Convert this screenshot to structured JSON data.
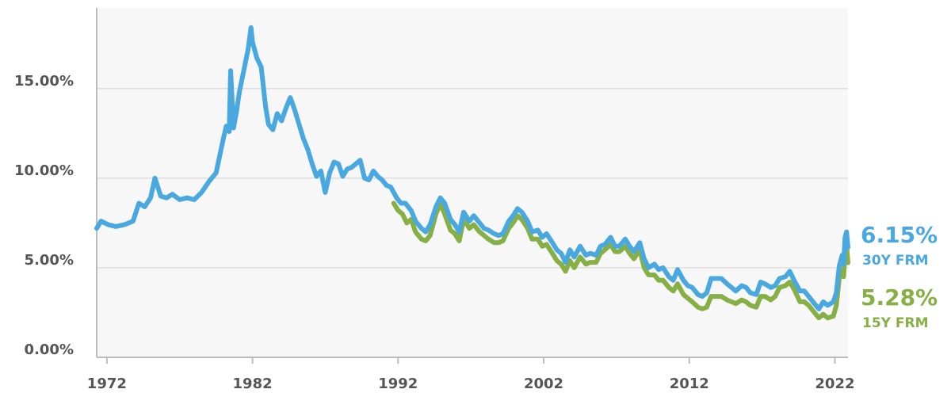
{
  "chart_data": {
    "type": "line",
    "xlim": [
      1971.3,
      2022.9
    ],
    "ylim": [
      0,
      19.5
    ],
    "y_ticks": [
      {
        "value": 0,
        "label": "0.00%"
      },
      {
        "value": 5,
        "label": "5.00%"
      },
      {
        "value": 10,
        "label": "10.00%"
      },
      {
        "value": 15,
        "label": "15.00%"
      }
    ],
    "x_ticks": [
      {
        "value": 1972,
        "label": "1972"
      },
      {
        "value": 1982,
        "label": "1982"
      },
      {
        "value": 1992,
        "label": "1992"
      },
      {
        "value": 2002,
        "label": "2002"
      },
      {
        "value": 2012,
        "label": "2012"
      },
      {
        "value": 2022,
        "label": "2022"
      }
    ],
    "grid": "horizontal",
    "colors": {
      "plot_bg": "#f7f7f7",
      "grid": "#dddddd",
      "axis": "#bbbbbb"
    },
    "series": [
      {
        "name": "30Y FRM",
        "color": "#4aa8e0",
        "end_value_label": "6.15%",
        "end_name_label": "30Y FRM",
        "points": [
          [
            1971.3,
            7.2
          ],
          [
            1971.6,
            7.6
          ],
          [
            1972.1,
            7.4
          ],
          [
            1972.6,
            7.3
          ],
          [
            1973.2,
            7.4
          ],
          [
            1973.8,
            7.6
          ],
          [
            1974.2,
            8.6
          ],
          [
            1974.6,
            8.4
          ],
          [
            1975.0,
            8.9
          ],
          [
            1975.3,
            10.0
          ],
          [
            1975.7,
            9.0
          ],
          [
            1976.1,
            8.9
          ],
          [
            1976.5,
            9.1
          ],
          [
            1977.0,
            8.8
          ],
          [
            1977.5,
            8.9
          ],
          [
            1978.0,
            8.8
          ],
          [
            1978.5,
            9.2
          ],
          [
            1979.0,
            9.8
          ],
          [
            1979.5,
            10.3
          ],
          [
            1980.0,
            12.2
          ],
          [
            1980.2,
            12.9
          ],
          [
            1980.4,
            12.6
          ],
          [
            1980.5,
            16.0
          ],
          [
            1980.7,
            12.8
          ],
          [
            1980.9,
            13.7
          ],
          [
            1981.1,
            14.8
          ],
          [
            1981.4,
            16.0
          ],
          [
            1981.7,
            17.2
          ],
          [
            1981.9,
            18.4
          ],
          [
            1982.0,
            17.6
          ],
          [
            1982.3,
            16.7
          ],
          [
            1982.6,
            16.2
          ],
          [
            1982.9,
            14.0
          ],
          [
            1983.1,
            13.0
          ],
          [
            1983.4,
            12.7
          ],
          [
            1983.7,
            13.6
          ],
          [
            1984.0,
            13.2
          ],
          [
            1984.3,
            13.9
          ],
          [
            1984.6,
            14.5
          ],
          [
            1984.9,
            13.8
          ],
          [
            1985.2,
            13.0
          ],
          [
            1985.5,
            12.2
          ],
          [
            1985.8,
            11.6
          ],
          [
            1986.1,
            10.8
          ],
          [
            1986.4,
            10.1
          ],
          [
            1986.7,
            10.4
          ],
          [
            1987.0,
            9.2
          ],
          [
            1987.3,
            10.3
          ],
          [
            1987.6,
            10.9
          ],
          [
            1987.9,
            10.8
          ],
          [
            1988.2,
            10.1
          ],
          [
            1988.5,
            10.5
          ],
          [
            1988.8,
            10.6
          ],
          [
            1989.1,
            10.8
          ],
          [
            1989.4,
            11.0
          ],
          [
            1989.7,
            10.0
          ],
          [
            1990.0,
            9.9
          ],
          [
            1990.3,
            10.4
          ],
          [
            1990.6,
            10.1
          ],
          [
            1990.9,
            9.9
          ],
          [
            1991.2,
            9.6
          ],
          [
            1991.5,
            9.5
          ],
          [
            1991.9,
            8.9
          ],
          [
            1992.2,
            8.6
          ],
          [
            1992.5,
            8.6
          ],
          [
            1992.9,
            8.2
          ],
          [
            1993.2,
            7.6
          ],
          [
            1993.6,
            7.2
          ],
          [
            1993.9,
            7.0
          ],
          [
            1994.2,
            7.4
          ],
          [
            1994.6,
            8.4
          ],
          [
            1994.9,
            8.9
          ],
          [
            1995.2,
            8.6
          ],
          [
            1995.6,
            7.7
          ],
          [
            1995.9,
            7.4
          ],
          [
            1996.2,
            7.0
          ],
          [
            1996.5,
            8.1
          ],
          [
            1996.9,
            7.6
          ],
          [
            1997.2,
            7.9
          ],
          [
            1997.6,
            7.5
          ],
          [
            1997.9,
            7.2
          ],
          [
            1998.2,
            7.1
          ],
          [
            1998.6,
            6.9
          ],
          [
            1998.9,
            6.8
          ],
          [
            1999.2,
            6.9
          ],
          [
            1999.6,
            7.6
          ],
          [
            1999.9,
            7.9
          ],
          [
            2000.2,
            8.3
          ],
          [
            2000.5,
            8.1
          ],
          [
            2000.9,
            7.6
          ],
          [
            2001.2,
            7.0
          ],
          [
            2001.6,
            7.1
          ],
          [
            2001.9,
            6.7
          ],
          [
            2002.2,
            6.9
          ],
          [
            2002.6,
            6.4
          ],
          [
            2002.9,
            6.0
          ],
          [
            2003.2,
            5.8
          ],
          [
            2003.5,
            5.3
          ],
          [
            2003.8,
            6.0
          ],
          [
            2004.1,
            5.6
          ],
          [
            2004.5,
            6.2
          ],
          [
            2004.9,
            5.7
          ],
          [
            2005.2,
            5.8
          ],
          [
            2005.6,
            5.7
          ],
          [
            2005.9,
            6.2
          ],
          [
            2006.2,
            6.3
          ],
          [
            2006.6,
            6.7
          ],
          [
            2006.9,
            6.2
          ],
          [
            2007.2,
            6.2
          ],
          [
            2007.6,
            6.6
          ],
          [
            2007.9,
            6.2
          ],
          [
            2008.2,
            5.9
          ],
          [
            2008.6,
            6.4
          ],
          [
            2008.9,
            5.5
          ],
          [
            2009.2,
            5.0
          ],
          [
            2009.6,
            5.2
          ],
          [
            2009.9,
            4.9
          ],
          [
            2010.2,
            5.0
          ],
          [
            2010.6,
            4.5
          ],
          [
            2010.9,
            4.3
          ],
          [
            2011.2,
            4.9
          ],
          [
            2011.6,
            4.3
          ],
          [
            2011.9,
            4.0
          ],
          [
            2012.2,
            3.9
          ],
          [
            2012.6,
            3.5
          ],
          [
            2012.9,
            3.4
          ],
          [
            2013.2,
            3.6
          ],
          [
            2013.5,
            4.4
          ],
          [
            2013.9,
            4.4
          ],
          [
            2014.2,
            4.4
          ],
          [
            2014.6,
            4.1
          ],
          [
            2014.9,
            3.9
          ],
          [
            2015.2,
            3.7
          ],
          [
            2015.6,
            4.0
          ],
          [
            2015.9,
            3.9
          ],
          [
            2016.2,
            3.6
          ],
          [
            2016.6,
            3.5
          ],
          [
            2016.9,
            4.2
          ],
          [
            2017.2,
            4.1
          ],
          [
            2017.6,
            3.9
          ],
          [
            2017.9,
            4.0
          ],
          [
            2018.2,
            4.4
          ],
          [
            2018.6,
            4.5
          ],
          [
            2018.9,
            4.8
          ],
          [
            2019.2,
            4.3
          ],
          [
            2019.6,
            3.7
          ],
          [
            2019.9,
            3.7
          ],
          [
            2020.2,
            3.4
          ],
          [
            2020.6,
            3.0
          ],
          [
            2020.9,
            2.7
          ],
          [
            2021.2,
            3.1
          ],
          [
            2021.5,
            2.9
          ],
          [
            2021.9,
            3.1
          ],
          [
            2022.1,
            3.6
          ],
          [
            2022.3,
            5.1
          ],
          [
            2022.5,
            5.7
          ],
          [
            2022.6,
            5.2
          ],
          [
            2022.7,
            6.7
          ],
          [
            2022.8,
            7.0
          ],
          [
            2022.9,
            6.15
          ]
        ]
      },
      {
        "name": "15Y FRM",
        "color": "#86b046",
        "end_value_label": "5.28%",
        "end_name_label": "15Y FRM",
        "points": [
          [
            1991.7,
            8.6
          ],
          [
            1992.0,
            8.2
          ],
          [
            1992.3,
            8.0
          ],
          [
            1992.6,
            7.5
          ],
          [
            1992.9,
            7.7
          ],
          [
            1993.2,
            7.0
          ],
          [
            1993.6,
            6.6
          ],
          [
            1993.9,
            6.5
          ],
          [
            1994.2,
            6.8
          ],
          [
            1994.6,
            8.0
          ],
          [
            1994.9,
            8.6
          ],
          [
            1995.2,
            8.0
          ],
          [
            1995.6,
            7.1
          ],
          [
            1995.9,
            6.9
          ],
          [
            1996.2,
            6.5
          ],
          [
            1996.5,
            7.7
          ],
          [
            1996.9,
            7.2
          ],
          [
            1997.2,
            7.4
          ],
          [
            1997.6,
            7.0
          ],
          [
            1997.9,
            6.8
          ],
          [
            1998.2,
            6.6
          ],
          [
            1998.6,
            6.4
          ],
          [
            1998.9,
            6.4
          ],
          [
            1999.2,
            6.5
          ],
          [
            1999.6,
            7.2
          ],
          [
            1999.9,
            7.5
          ],
          [
            2000.2,
            7.9
          ],
          [
            2000.5,
            7.7
          ],
          [
            2000.9,
            7.2
          ],
          [
            2001.2,
            6.6
          ],
          [
            2001.6,
            6.6
          ],
          [
            2001.9,
            6.2
          ],
          [
            2002.2,
            6.3
          ],
          [
            2002.6,
            5.8
          ],
          [
            2002.9,
            5.4
          ],
          [
            2003.2,
            5.2
          ],
          [
            2003.5,
            4.8
          ],
          [
            2003.8,
            5.4
          ],
          [
            2004.1,
            5.0
          ],
          [
            2004.5,
            5.6
          ],
          [
            2004.9,
            5.2
          ],
          [
            2005.2,
            5.3
          ],
          [
            2005.6,
            5.3
          ],
          [
            2005.9,
            5.8
          ],
          [
            2006.2,
            6.0
          ],
          [
            2006.6,
            6.3
          ],
          [
            2006.9,
            5.9
          ],
          [
            2007.2,
            5.9
          ],
          [
            2007.6,
            6.2
          ],
          [
            2007.9,
            5.8
          ],
          [
            2008.2,
            5.5
          ],
          [
            2008.6,
            6.0
          ],
          [
            2008.9,
            5.0
          ],
          [
            2009.2,
            4.6
          ],
          [
            2009.6,
            4.6
          ],
          [
            2009.9,
            4.3
          ],
          [
            2010.2,
            4.3
          ],
          [
            2010.6,
            3.9
          ],
          [
            2010.9,
            3.7
          ],
          [
            2011.2,
            4.1
          ],
          [
            2011.6,
            3.5
          ],
          [
            2011.9,
            3.3
          ],
          [
            2012.2,
            3.1
          ],
          [
            2012.6,
            2.8
          ],
          [
            2012.9,
            2.7
          ],
          [
            2013.2,
            2.8
          ],
          [
            2013.5,
            3.4
          ],
          [
            2013.9,
            3.4
          ],
          [
            2014.2,
            3.4
          ],
          [
            2014.6,
            3.2
          ],
          [
            2014.9,
            3.1
          ],
          [
            2015.2,
            3.0
          ],
          [
            2015.6,
            3.2
          ],
          [
            2015.9,
            3.1
          ],
          [
            2016.2,
            2.9
          ],
          [
            2016.6,
            2.8
          ],
          [
            2016.9,
            3.4
          ],
          [
            2017.2,
            3.4
          ],
          [
            2017.6,
            3.2
          ],
          [
            2017.9,
            3.4
          ],
          [
            2018.2,
            3.9
          ],
          [
            2018.6,
            4.0
          ],
          [
            2018.9,
            4.2
          ],
          [
            2019.2,
            3.8
          ],
          [
            2019.6,
            3.1
          ],
          [
            2019.9,
            3.1
          ],
          [
            2020.2,
            2.9
          ],
          [
            2020.6,
            2.5
          ],
          [
            2020.9,
            2.2
          ],
          [
            2021.2,
            2.4
          ],
          [
            2021.5,
            2.2
          ],
          [
            2021.9,
            2.3
          ],
          [
            2022.1,
            2.9
          ],
          [
            2022.3,
            4.4
          ],
          [
            2022.5,
            4.9
          ],
          [
            2022.6,
            4.5
          ],
          [
            2022.7,
            5.9
          ],
          [
            2022.8,
            6.3
          ],
          [
            2022.9,
            5.28
          ]
        ]
      }
    ]
  }
}
